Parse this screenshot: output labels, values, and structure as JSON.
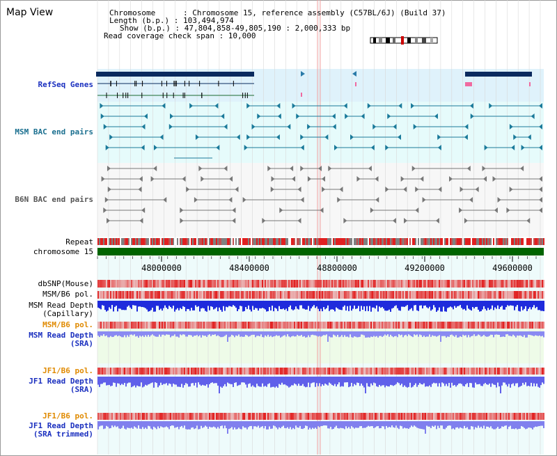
{
  "title": "Map View",
  "info": {
    "chromosome": "Chromosome      : Chromosome 15, reference assembly (C57BL/6J) (Build 37)",
    "length": "Length (b.p.) : 103,494,974",
    "show": "Show (b.p.) : 47,804,858-49,805,190 : 2,000,333 bp",
    "coverage": "Read coverage check span : 10,000"
  },
  "tracks": {
    "refseq": "RefSeq Genes",
    "msm_bac": "MSM BAC end pairs",
    "b6n_bac": "B6N BAC end pairs",
    "repeat": "Repeat",
    "chromosome": "chromosome 15",
    "dbsnp": "dbSNP(Mouse)",
    "msm_b6_pol": "MSM/B6 pol.",
    "msm_depth_cap": "MSM Read Depth\n(Capillary)",
    "msm_b6_pol2": "MSM/B6 pol.",
    "msm_depth_sra": "MSM Read Depth\n(SRA)",
    "jf1_b6_pol": "JF1/B6 pol.",
    "jf1_depth_sra": "JF1 Read Depth\n(SRA)",
    "jf1_b6_pol2": "JF1/B6 pol.",
    "jf1_depth_trim": "JF1 Read Depth\n(SRA trimmed)"
  },
  "axis": {
    "ticks": [
      "48000000",
      "48400000",
      "48800000",
      "49200000",
      "49600000"
    ]
  },
  "colors": {
    "refseq_bg": "#dff2fb",
    "msm_bg": "#e6fbfb",
    "gene": "#0a2a5e",
    "chromosome": "#006400",
    "read_depth": "#3a3af0",
    "snp_red": "#e01010"
  }
}
